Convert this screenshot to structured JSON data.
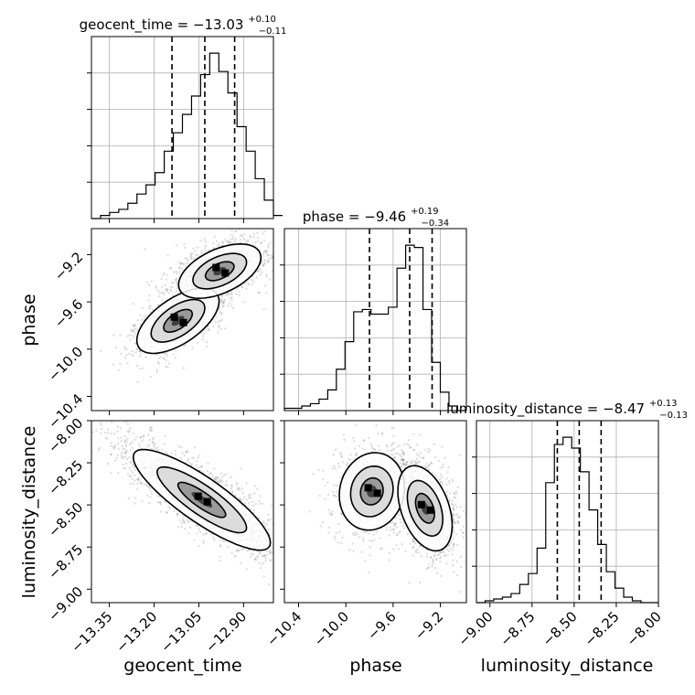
{
  "chart_data": {
    "type": "corner",
    "parameters": [
      "geocent_time",
      "phase",
      "luminosity_distance"
    ],
    "titles": [
      {
        "param": "geocent_time",
        "text": "geocent_time = −13.03",
        "sup": "+0.10",
        "sub": "−0.11"
      },
      {
        "param": "phase",
        "text": "phase = −9.46",
        "sup": "+0.19",
        "sub": "−0.34"
      },
      {
        "param": "luminosity_distance",
        "text": "luminosity_distance = −8.47",
        "sup": "+0.13",
        "sub": "−0.13"
      }
    ],
    "ranges": {
      "geocent_time": [
        -13.41,
        -12.8
      ],
      "phase": [
        -10.52,
        -8.98
      ],
      "luminosity_distance": [
        -9.08,
        -8.0
      ]
    },
    "ticks": {
      "geocent_time": [
        -13.35,
        -13.2,
        -13.05,
        -12.9
      ],
      "phase": [
        -10.4,
        -10.0,
        -9.6,
        -9.2
      ],
      "luminosity_distance": [
        -9.0,
        -8.75,
        -8.5,
        -8.25,
        -8.0
      ]
    },
    "tick_labels": {
      "geocent_time": [
        "−13.35",
        "−13.20",
        "−13.05",
        "−12.90"
      ],
      "phase": [
        "−10.4",
        "−10.0",
        "−9.6",
        "−9.2"
      ],
      "luminosity_distance_x": [
        "−9.00",
        "−8.75",
        "−8.50",
        "−8.25",
        "−8.00"
      ],
      "luminosity_distance_y": [
        "−9.00",
        "−8.75",
        "−8.50",
        "−8.25",
        "−8.00"
      ]
    },
    "axis_labels": {
      "x": [
        "geocent_time",
        "phase",
        "luminosity_distance"
      ],
      "y": [
        "phase",
        "luminosity_distance"
      ]
    },
    "histograms": {
      "geocent_time": {
        "edges_start": -13.41,
        "bin_width": 0.0305,
        "counts": [
          0,
          1,
          2,
          3,
          5,
          8,
          11,
          15,
          22,
          28,
          34,
          40,
          47,
          54,
          48,
          41,
          30,
          22,
          13,
          6,
          1
        ],
        "quantiles": [
          -13.14,
          -13.03,
          -12.93
        ]
      },
      "phase": {
        "edges_start": -10.52,
        "bin_width": 0.0733,
        "counts": [
          1,
          1,
          2,
          3,
          5,
          9,
          18,
          30,
          43,
          44,
          42,
          42,
          45,
          62,
          72,
          71,
          44,
          21,
          8,
          2,
          0
        ],
        "quantiles": [
          -9.8,
          -9.46,
          -9.27
        ]
      },
      "luminosity_distance": {
        "edges_start": -9.08,
        "bin_width": 0.0514,
        "counts": [
          0,
          1,
          2,
          3,
          5,
          10,
          16,
          30,
          66,
          87,
          91,
          85,
          72,
          51,
          32,
          17,
          8,
          3,
          1,
          0,
          0
        ],
        "quantiles": [
          -8.6,
          -8.47,
          -8.34
        ]
      }
    },
    "joint": {
      "phase_vs_geocent_time": {
        "blobs": [
          {
            "x": -13.12,
            "y": -9.76,
            "sx": 0.06,
            "sy": 0.12,
            "rho": 0.6,
            "w": 1
          },
          {
            "x": -12.98,
            "y": -9.34,
            "sx": 0.06,
            "sy": 0.1,
            "rho": 0.5,
            "w": 1.4
          }
        ]
      },
      "luminosity_distance_vs_geocent_time": {
        "blobs": [
          {
            "x": -13.04,
            "y": -8.47,
            "sx": 0.1,
            "sy": 0.13,
            "rho": -0.85,
            "w": 1
          }
        ]
      },
      "luminosity_distance_vs_phase": {
        "blobs": [
          {
            "x": -9.78,
            "y": -8.42,
            "sx": 0.12,
            "sy": 0.1,
            "rho": 0.1,
            "w": 0.9
          },
          {
            "x": -9.33,
            "y": -8.52,
            "sx": 0.1,
            "sy": 0.11,
            "rho": -0.4,
            "w": 1.2
          }
        ]
      }
    },
    "grid": true
  }
}
